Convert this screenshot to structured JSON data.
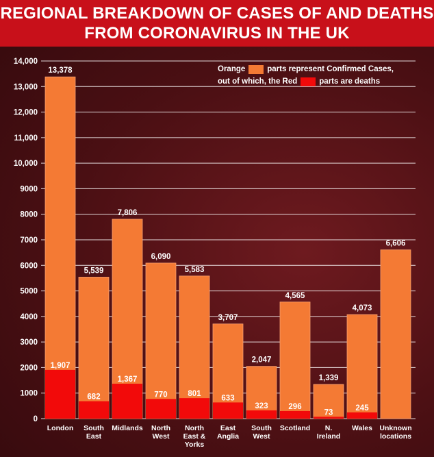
{
  "title": {
    "line1": "REGIONAL BREAKDOWN OF CASES OF AND DEATHS",
    "line2": "FROM CORONAVIRUS IN THE UK"
  },
  "legend": {
    "line1_pre": "Orange",
    "line1_post": "parts represent Confirmed Cases,",
    "line2_pre": "out of which, the Red",
    "line2_post": "parts are deaths"
  },
  "colors": {
    "background": "#4a0f13",
    "title_bar": "#c8101a",
    "cases": "#f47a34",
    "deaths": "#f20a0a",
    "text": "#ffffff",
    "grid": "#ffffff"
  },
  "chart_data": {
    "type": "bar",
    "stacked": "overlay",
    "categories": [
      [
        "London"
      ],
      [
        "South",
        "East"
      ],
      [
        "Midlands"
      ],
      [
        "North",
        "West"
      ],
      [
        "North",
        "East &",
        "Yorks"
      ],
      [
        "East",
        "Anglia"
      ],
      [
        "South",
        "West"
      ],
      [
        "Scotland"
      ],
      [
        "N.",
        "Ireland"
      ],
      [
        "Wales"
      ],
      [
        "Unknown",
        "locations"
      ]
    ],
    "series": [
      {
        "name": "Confirmed Cases",
        "values": [
          13378,
          5539,
          7806,
          6090,
          5583,
          3707,
          2047,
          4565,
          1339,
          4073,
          6606
        ],
        "labels": [
          "13,378",
          "5,539",
          "7,806",
          "6,090",
          "5,583",
          "3,707",
          "2,047",
          "4,565",
          "1,339",
          "4,073",
          "6,606"
        ]
      },
      {
        "name": "Deaths",
        "values": [
          1907,
          682,
          1367,
          770,
          801,
          633,
          323,
          296,
          73,
          245,
          null
        ],
        "labels": [
          "1,907",
          "682",
          "1,367",
          "770",
          "801",
          "633",
          "323",
          "296",
          "73",
          "245",
          null
        ]
      }
    ],
    "ylim": [
      0,
      14000
    ],
    "yticks": [
      0,
      1000,
      2000,
      3000,
      4000,
      5000,
      6000,
      7000,
      8000,
      9000,
      10000,
      11000,
      12000,
      13000,
      14000
    ],
    "ytick_labels": [
      "0",
      "1000",
      "2000",
      "3000",
      "4000",
      "5000",
      "6000",
      "7000",
      "8000",
      "9000",
      "10,000",
      "11,000",
      "12,000",
      "13,000",
      "14,000"
    ],
    "grid": true,
    "legend_position": "top-right"
  }
}
